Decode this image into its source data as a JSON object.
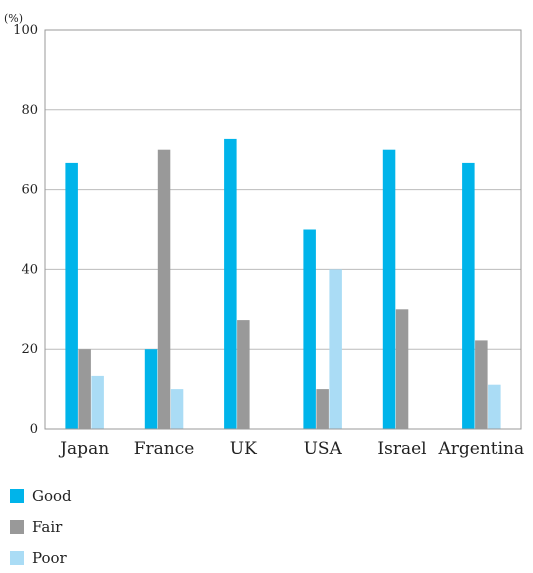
{
  "chart_data": {
    "type": "bar",
    "unit_label": "(%)",
    "categories": [
      "Japan",
      "France",
      "UK",
      "USA",
      "Israel",
      "Argentina"
    ],
    "series": [
      {
        "name": "Good",
        "color": "#00b4ea",
        "values": [
          66.7,
          20,
          72.7,
          50,
          70,
          66.7
        ]
      },
      {
        "name": "Fair",
        "color": "#999999",
        "values": [
          20,
          70,
          27.3,
          10,
          30,
          22.2
        ]
      },
      {
        "name": "Poor",
        "color": "#aadcf5",
        "values": [
          13.3,
          10,
          0,
          40,
          0,
          11.1
        ]
      }
    ],
    "ylim": [
      0,
      100
    ],
    "yticks": [
      0,
      20,
      40,
      60,
      80,
      100
    ],
    "grid": true,
    "legend_position": "bottom-left"
  }
}
